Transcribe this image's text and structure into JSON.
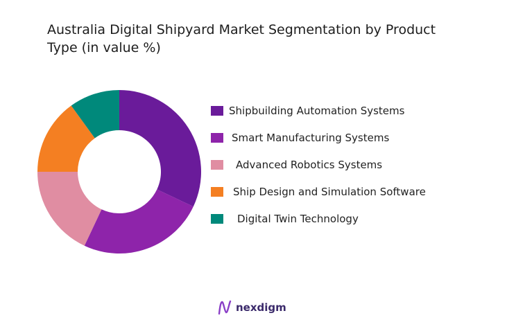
{
  "chart_data": {
    "type": "pie",
    "title": "Australia Digital Shipyard Market Segmentation by Product\nType (in value %)",
    "categories": [
      "Shipbuilding Automation Systems",
      "Smart Manufacturing Systems",
      "Advanced Robotics Systems",
      "Ship Design and Simulation Software",
      "Digital Twin Technology"
    ],
    "values": [
      32,
      25,
      18,
      15,
      10
    ],
    "colors": [
      "#6a1b9a",
      "#8e24aa",
      "#e08da2",
      "#f47f22",
      "#00897b"
    ],
    "legend_position": "right",
    "donut": true
  },
  "branding": {
    "name": "nexdigm",
    "logo_icon": "nexdigm-logo-icon"
  }
}
